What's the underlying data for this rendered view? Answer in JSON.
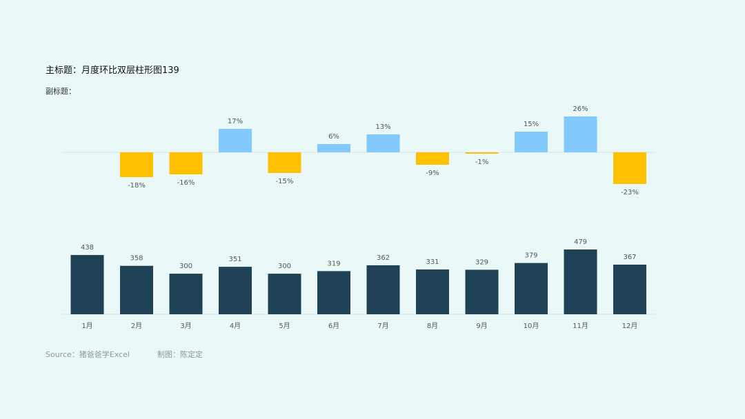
{
  "title": "主标题：月度环比双层柱形图139",
  "subtitle": "副标题：",
  "source": "Source：猪爸爸学Excel",
  "maker": "制图：陈定定",
  "colors": {
    "background": "#ebf8f8",
    "positive": "#82cafd",
    "negative": "#ffc000",
    "volume": "#1f4256",
    "axis": "#d7e3e6"
  },
  "chart_data": [
    {
      "type": "bar",
      "categories": [
        "1月",
        "2月",
        "3月",
        "4月",
        "5月",
        "6月",
        "7月",
        "8月",
        "9月",
        "10月",
        "11月",
        "12月"
      ],
      "values": [
        null,
        -18,
        -16,
        17,
        -15,
        6,
        13,
        -9,
        -1,
        15,
        26,
        -23
      ],
      "labels": [
        "",
        "-18%",
        "-16%",
        "17%",
        "-15%",
        "6%",
        "13%",
        "-9%",
        "-1%",
        "15%",
        "26%",
        "-23%"
      ],
      "unit": "%",
      "ylim": [
        -30,
        30
      ],
      "grid": false
    },
    {
      "type": "bar",
      "categories": [
        "1月",
        "2月",
        "3月",
        "4月",
        "5月",
        "6月",
        "7月",
        "8月",
        "9月",
        "10月",
        "11月",
        "12月"
      ],
      "values": [
        438,
        358,
        300,
        351,
        300,
        319,
        362,
        331,
        329,
        379,
        479,
        367
      ],
      "ylim": [
        0,
        479
      ],
      "grid": false
    }
  ]
}
